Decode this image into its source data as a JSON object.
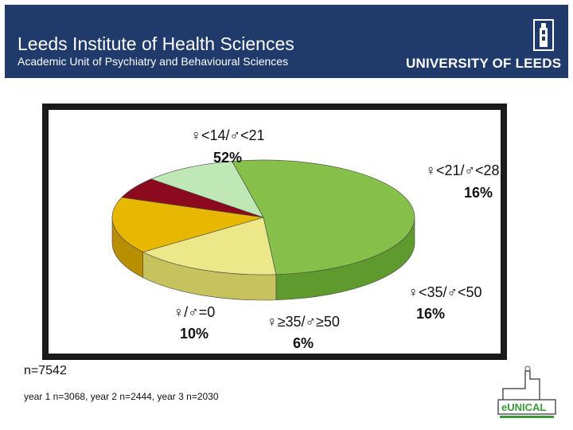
{
  "header": {
    "title": "Leeds Institute of Health Sciences",
    "subtitle": "Academic Unit of Psychiatry and Behavioural Sciences",
    "university": "UNIVERSITY OF LEEDS"
  },
  "colors": {
    "header_bg": "#1f3a6b",
    "green": "#86c04a",
    "yellow": "#ece88a",
    "orange": "#e8b800",
    "darkred": "#8b0a1e",
    "lightgreen": "#bfe8b6"
  },
  "chart_data": {
    "type": "pie",
    "slices": [
      {
        "label": "♀<14/♂<21",
        "value": 52,
        "value_label": "52%",
        "color": "#86c04a",
        "color_dark": "#5f9a2f"
      },
      {
        "label": "♀<21/♂<28",
        "value": 16,
        "value_label": "16%",
        "color": "#ece88a",
        "color_dark": "#c7c25e"
      },
      {
        "label": "♀<35/♂<50",
        "value": 16,
        "value_label": "16%",
        "color": "#e8b800",
        "color_dark": "#b88f00"
      },
      {
        "label": "♀≥35/♂≥50",
        "value": 6,
        "value_label": "6%",
        "color": "#8b0a1e",
        "color_dark": "#5e0614"
      },
      {
        "label": "♀/♂=0",
        "value": 10,
        "value_label": "10%",
        "color": "#bfe8b6",
        "color_dark": "#94c28c"
      }
    ],
    "style": "3d"
  },
  "footer": {
    "n": "n=7542",
    "years": "year 1 n=3068, year 2 n=2444, year 3 n=2030",
    "logo_text": "eUNICAL"
  }
}
